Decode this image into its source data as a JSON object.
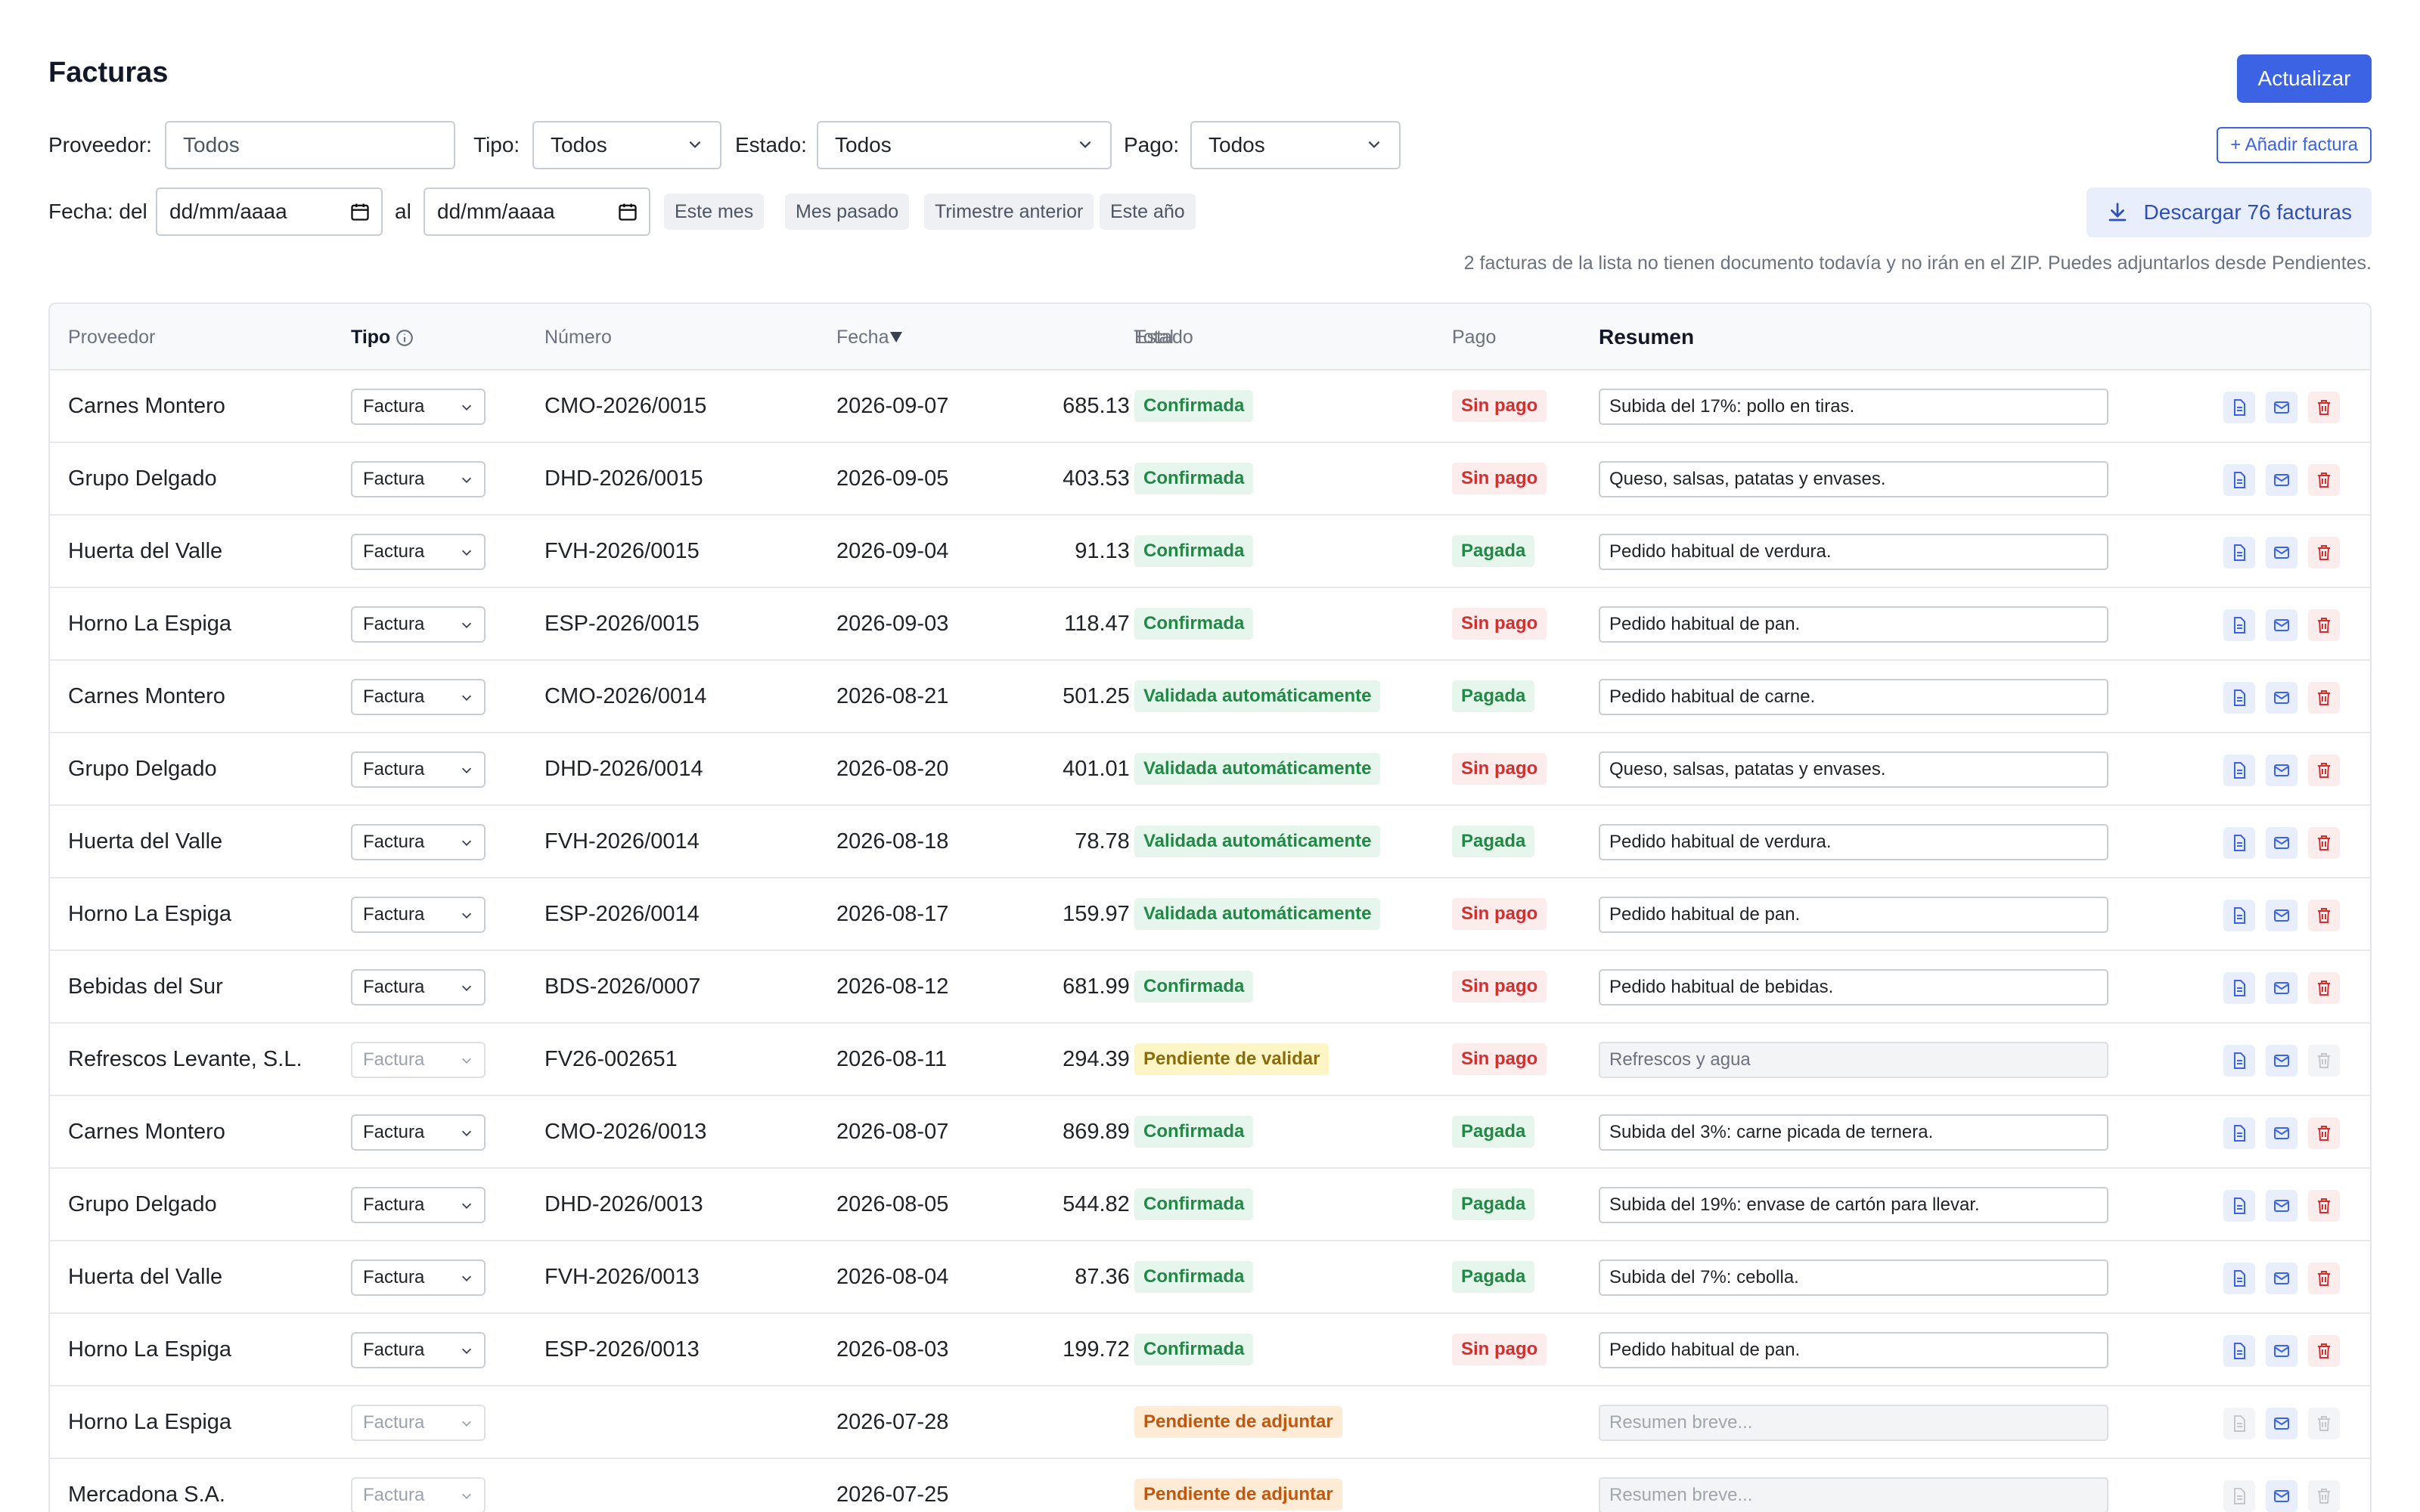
{
  "header": {
    "title": "Facturas",
    "refresh_label": "Actualizar"
  },
  "filters": {
    "proveedor_label": "Proveedor:",
    "proveedor_value": "Todos",
    "tipo_label": "Tipo:",
    "tipo_value": "Todos",
    "estado_label": "Estado:",
    "estado_value": "Todos",
    "pago_label": "Pago:",
    "pago_value": "Todos",
    "add_label": "+ Añadir factura",
    "fecha_label": "Fecha: del",
    "fecha_from": "dd/mm/aaaa",
    "al_label": "al",
    "fecha_to": "dd/mm/aaaa",
    "chips": [
      "Este mes",
      "Mes pasado",
      "Trimestre anterior",
      "Este año"
    ],
    "download_label": "Descargar 76 facturas"
  },
  "note": "2 facturas de la lista no tienen documento todavía y no irán en el ZIP. Puedes adjuntarlos desde Pendientes.",
  "table": {
    "headers": {
      "proveedor": "Proveedor",
      "tipo": "Tipo",
      "numero": "Número",
      "fecha": "Fecha",
      "total": "Total",
      "estado": "Estado",
      "pago": "Pago",
      "resumen": "Resumen"
    },
    "rows": [
      {
        "proveedor": "Carnes Montero",
        "tipo": "Factura",
        "numero": "CMO-2026/0015",
        "fecha": "2026-09-07",
        "total": "685.13 €",
        "estado": "Confirmada",
        "pago": "Sin pago",
        "resumen": "Subida del 17%: pollo en tiras."
      },
      {
        "proveedor": "Grupo Delgado",
        "tipo": "Factura",
        "numero": "DHD-2026/0015",
        "fecha": "2026-09-05",
        "total": "403.53 €",
        "estado": "Confirmada",
        "pago": "Sin pago",
        "resumen": "Queso, salsas, patatas y envases."
      },
      {
        "proveedor": "Huerta del Valle",
        "tipo": "Factura",
        "numero": "FVH-2026/0015",
        "fecha": "2026-09-04",
        "total": "91.13 €",
        "estado": "Confirmada",
        "pago": "Pagada",
        "resumen": "Pedido habitual de verdura."
      },
      {
        "proveedor": "Horno La Espiga",
        "tipo": "Factura",
        "numero": "ESP-2026/0015",
        "fecha": "2026-09-03",
        "total": "118.47 €",
        "estado": "Confirmada",
        "pago": "Sin pago",
        "resumen": "Pedido habitual de pan."
      },
      {
        "proveedor": "Carnes Montero",
        "tipo": "Factura",
        "numero": "CMO-2026/0014",
        "fecha": "2026-08-21",
        "total": "501.25 €",
        "estado": "Validada automáticamente",
        "pago": "Pagada",
        "resumen": "Pedido habitual de carne."
      },
      {
        "proveedor": "Grupo Delgado",
        "tipo": "Factura",
        "numero": "DHD-2026/0014",
        "fecha": "2026-08-20",
        "total": "401.01 €",
        "estado": "Validada automáticamente",
        "pago": "Sin pago",
        "resumen": "Queso, salsas, patatas y envases."
      },
      {
        "proveedor": "Huerta del Valle",
        "tipo": "Factura",
        "numero": "FVH-2026/0014",
        "fecha": "2026-08-18",
        "total": "78.78 €",
        "estado": "Validada automáticamente",
        "pago": "Pagada",
        "resumen": "Pedido habitual de verdura."
      },
      {
        "proveedor": "Horno La Espiga",
        "tipo": "Factura",
        "numero": "ESP-2026/0014",
        "fecha": "2026-08-17",
        "total": "159.97 €",
        "estado": "Validada automáticamente",
        "pago": "Sin pago",
        "resumen": "Pedido habitual de pan."
      },
      {
        "proveedor": "Bebidas del Sur",
        "tipo": "Factura",
        "numero": "BDS-2026/0007",
        "fecha": "2026-08-12",
        "total": "681.99 €",
        "estado": "Confirmada",
        "pago": "Sin pago",
        "resumen": "Pedido habitual de bebidas."
      },
      {
        "proveedor": "Refrescos Levante, S.L.",
        "tipo": "Factura",
        "numero": "FV26-002651",
        "fecha": "2026-08-11",
        "total": "294.39 €",
        "estado": "Pendiente de validar",
        "pago": "Sin pago",
        "resumen": "Refrescos y agua"
      },
      {
        "proveedor": "Carnes Montero",
        "tipo": "Factura",
        "numero": "CMO-2026/0013",
        "fecha": "2026-08-07",
        "total": "869.89 €",
        "estado": "Confirmada",
        "pago": "Pagada",
        "resumen": "Subida del 3%: carne picada de ternera."
      },
      {
        "proveedor": "Grupo Delgado",
        "tipo": "Factura",
        "numero": "DHD-2026/0013",
        "fecha": "2026-08-05",
        "total": "544.82 €",
        "estado": "Confirmada",
        "pago": "Pagada",
        "resumen": "Subida del 19%: envase de cartón para llevar."
      },
      {
        "proveedor": "Huerta del Valle",
        "tipo": "Factura",
        "numero": "FVH-2026/0013",
        "fecha": "2026-08-04",
        "total": "87.36 €",
        "estado": "Confirmada",
        "pago": "Pagada",
        "resumen": "Subida del 7%: cebolla."
      },
      {
        "proveedor": "Horno La Espiga",
        "tipo": "Factura",
        "numero": "ESP-2026/0013",
        "fecha": "2026-08-03",
        "total": "199.72 €",
        "estado": "Confirmada",
        "pago": "Sin pago",
        "resumen": "Pedido habitual de pan."
      },
      {
        "proveedor": "Horno La Espiga",
        "tipo": "Factura",
        "numero": "",
        "fecha": "2026-07-28",
        "total": "",
        "estado": "Pendiente de adjuntar",
        "pago": "",
        "resumen": "Resumen breve..."
      },
      {
        "proveedor": "Mercadona S.A.",
        "tipo": "Factura",
        "numero": "",
        "fecha": "2026-07-25",
        "total": "",
        "estado": "Pendiente de adjuntar",
        "pago": "",
        "resumen": "Resumen breve..."
      }
    ]
  },
  "icons": {
    "document": "document-icon",
    "mail": "mail-icon",
    "trash": "trash-icon",
    "download": "download-icon",
    "calendar": "calendar-icon",
    "info": "info-icon",
    "chevron": "chevron-down-icon",
    "sort": "sort-desc-icon"
  },
  "colors": {
    "primary": "#3b63e3",
    "success": "#1e8a44",
    "danger": "#d32f2f",
    "warning": "#8a6d0b",
    "orange": "#c2570c"
  }
}
